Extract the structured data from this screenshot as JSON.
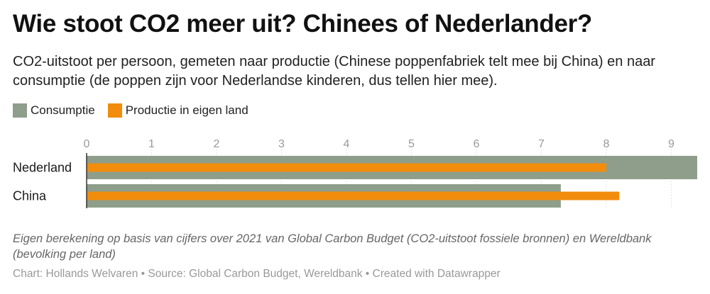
{
  "title": "Wie stoot CO2 meer uit? Chinees of Nederlander?",
  "subtitle": "CO2-uitstoot per persoon, gemeten naar productie (Chinese poppenfabriek telt mee bij China) en naar consumptie (de poppen zijn voor Nederlandse kinderen, dus tellen hier mee).",
  "notes": "Eigen berekening op basis van cijfers over 2021 van Global Carbon Budget (CO2-uitstoot fossiele bronnen) en Wereldbank (bevolking per land)",
  "credits": "Chart: Hollands Welvaren • Source: Global Carbon Budget, Wereldbank • Created with Datawrapper",
  "colors": {
    "consumptie": "#8e9e8a",
    "productie": "#f28c0d",
    "gridline": "#e3e3e3",
    "axis": "#333333"
  },
  "chart_data": {
    "type": "bar",
    "orientation": "horizontal",
    "categories": [
      "Nederland",
      "China"
    ],
    "series": [
      {
        "name": "Consumptie",
        "values": [
          9.4,
          7.3
        ]
      },
      {
        "name": "Productie in eigen land",
        "values": [
          8.0,
          8.2
        ]
      }
    ],
    "xlim": [
      0,
      9.4
    ],
    "xticks": [
      0,
      1,
      2,
      3,
      4,
      5,
      6,
      7,
      8,
      9
    ],
    "grid": true,
    "legend": "top-left"
  }
}
